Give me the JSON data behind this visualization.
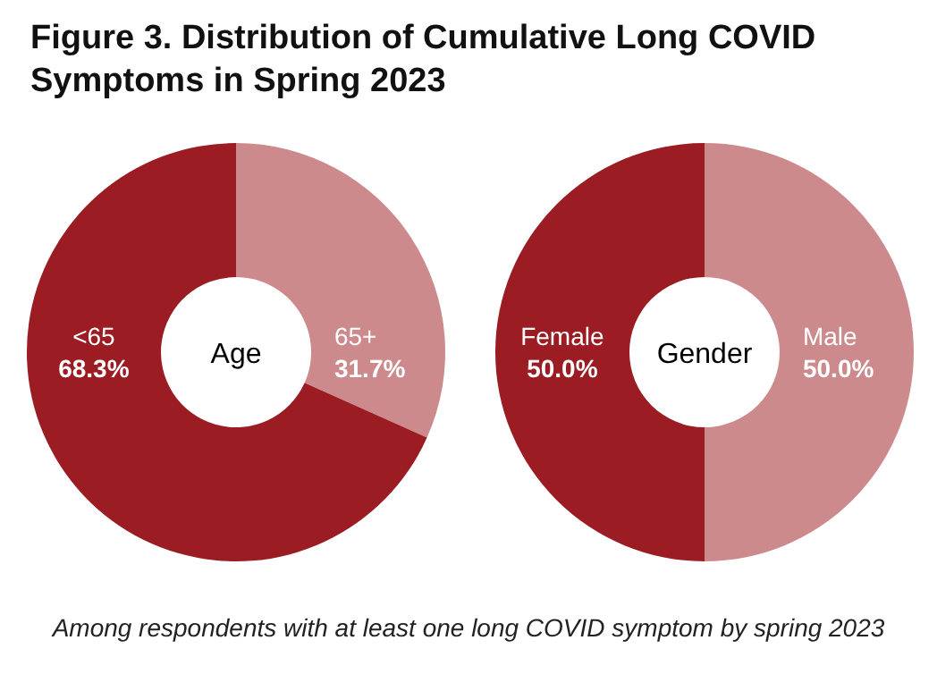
{
  "chart_data": [
    {
      "type": "donut",
      "title": "Figure 3. Distribution of Cumulative Long COVID Symptoms in Spring 2023",
      "categories": [
        "65+",
        "<65"
      ],
      "values": [
        31.7,
        68.3
      ],
      "colors": [
        "#cc8a8c",
        "#9b1c22"
      ],
      "value_labels": [
        "31.7%",
        "68.3%"
      ],
      "annotations": [
        "Age"
      ]
    },
    {
      "type": "donut",
      "categories": [
        "Male",
        "Female"
      ],
      "values": [
        50.0,
        50.0
      ],
      "colors": [
        "#cc8a8c",
        "#9b1c22"
      ],
      "value_labels": [
        "50.0%",
        "50.0%"
      ],
      "annotations": [
        "Gender",
        "Among respondents with at least one long COVID symptom by spring 2023"
      ]
    }
  ]
}
